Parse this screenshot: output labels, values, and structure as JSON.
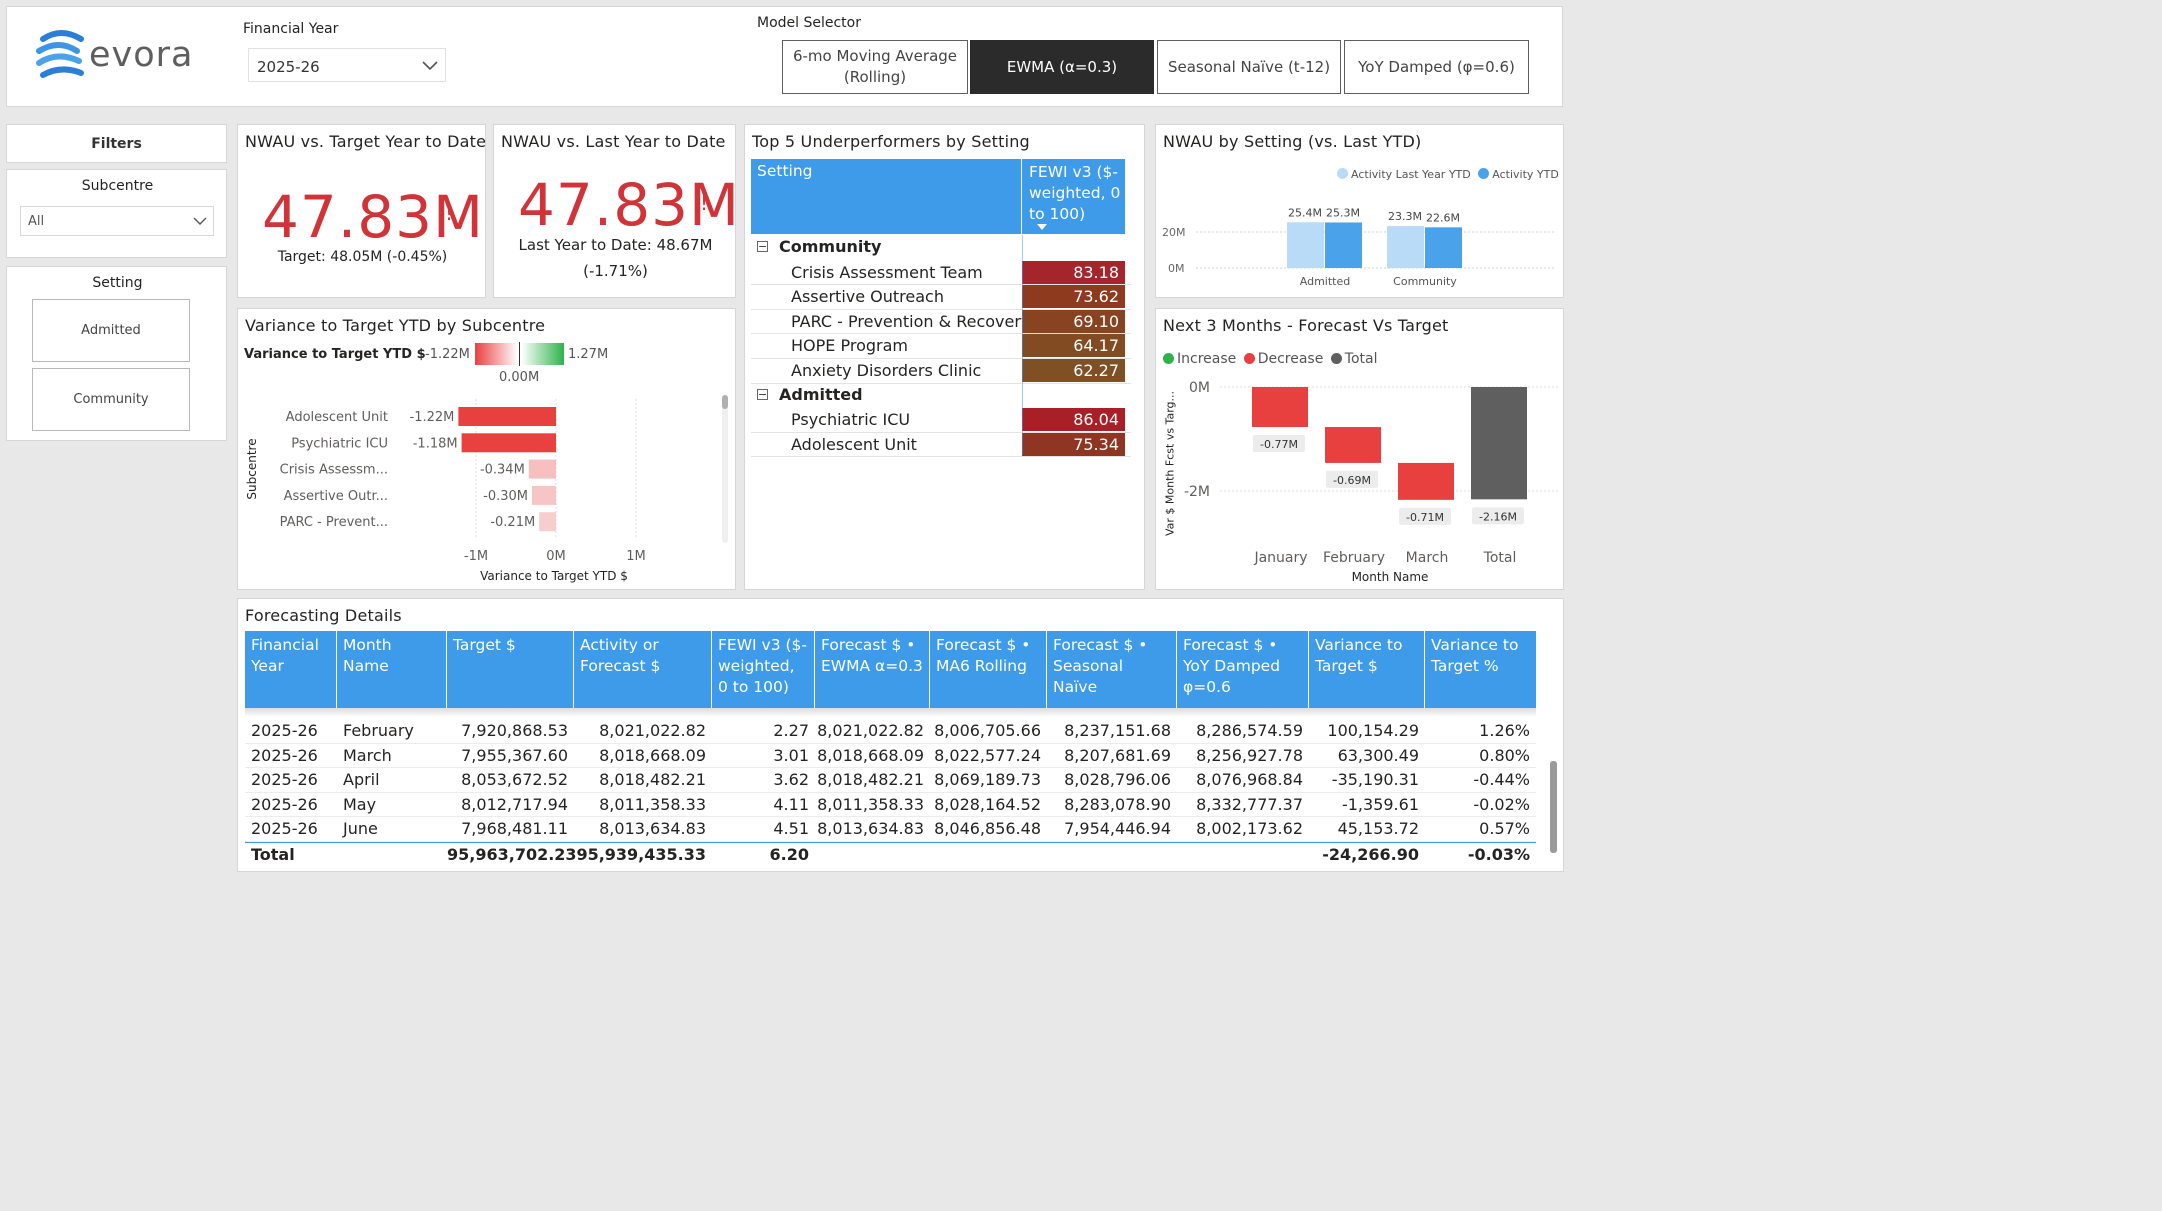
{
  "header": {
    "logo_text": "evora",
    "financial_year_label": "Financial Year",
    "financial_year_value": "2025-26",
    "model_selector_label": "Model Selector",
    "models": [
      {
        "label": "6-mo Moving Average (Rolling)",
        "active": false
      },
      {
        "label": "EWMA (α=0.3)",
        "active": true
      },
      {
        "label": "Seasonal Naïve (t-12)",
        "active": false
      },
      {
        "label": "YoY Damped (φ=0.6)",
        "active": false
      }
    ]
  },
  "filters": {
    "title": "Filters",
    "subcentre_label": "Subcentre",
    "subcentre_value": "All",
    "setting_label": "Setting",
    "setting_options": [
      "Admitted",
      "Community"
    ]
  },
  "kpi_target": {
    "title": "NWAU vs. Target Year to Date",
    "value": "47.83M",
    "alert": "!",
    "sub": "Target: 48.05M (-0.45%)"
  },
  "kpi_last_year": {
    "title": "NWAU vs. Last Year to Date",
    "value": "47.83M",
    "alert": "!",
    "sub1": "Last Year to Date: 48.67M",
    "sub2": "(-1.71%)"
  },
  "variance_chart": {
    "title": "Variance to Target YTD by Subcentre",
    "legend_label": "Variance to Target YTD $",
    "legend_min": "-1.22M",
    "legend_max": "1.27M",
    "legend_mid": "0.00M",
    "axis_title_y": "Subcentre",
    "axis_title_x": "Variance to Target YTD $",
    "ticks": [
      "-1M",
      "0M",
      "1M"
    ]
  },
  "underperformers": {
    "title": "Top 5 Underperformers by Setting",
    "col_setting": "Setting",
    "col_metric": "FEWI v3 ($-weighted, 0 to 100)",
    "groups": [
      {
        "name": "Community",
        "rows": [
          {
            "label": "Crisis Assessment Team",
            "value": "83.18",
            "color": "#a4262c"
          },
          {
            "label": "Assertive Outreach",
            "value": "73.62",
            "color": "#8e3a1e"
          },
          {
            "label": "PARC - Prevention & Recovery",
            "value": "69.10",
            "color": "#884421"
          },
          {
            "label": "HOPE Program",
            "value": "64.17",
            "color": "#834b22"
          },
          {
            "label": "Anxiety Disorders Clinic",
            "value": "62.27",
            "color": "#7f5024"
          }
        ]
      },
      {
        "name": "Admitted",
        "rows": [
          {
            "label": "Psychiatric ICU",
            "value": "86.04",
            "color": "#a81f26"
          },
          {
            "label": "Adolescent Unit",
            "value": "75.34",
            "color": "#8f3622"
          }
        ]
      }
    ]
  },
  "nwau_setting": {
    "title": "NWAU by Setting (vs. Last YTD)",
    "legend": [
      {
        "label": "Activity Last Year YTD",
        "color": "#b9dbf8"
      },
      {
        "label": "Activity YTD",
        "color": "#4aa3ea"
      }
    ],
    "y_ticks": [
      "20M",
      "0M"
    ]
  },
  "forecast_waterfall": {
    "title": "Next 3 Months - Forecast Vs Target",
    "legend": [
      {
        "label": "Increase",
        "color": "#2db34a"
      },
      {
        "label": "Decrease",
        "color": "#e8403f"
      },
      {
        "label": "Total",
        "color": "#5f5f5f"
      }
    ],
    "y_axis_title": "Var $ Month Fcst vs Targ...",
    "x_axis_title": "Month Name",
    "y_ticks": [
      "0M",
      "-2M"
    ]
  },
  "details": {
    "title": "Forecasting Details",
    "columns": [
      "Financial Year",
      "Month Name",
      "Target $",
      "Activity or Forecast $",
      "FEWI v3 ($-weighted, 0 to 100)",
      "Forecast $ • EWMA α=0.3",
      "Forecast $ • MA6 Rolling",
      "Forecast $ • Seasonal Naïve",
      "Forecast $ • YoY Damped φ=0.6",
      "Variance to Target $",
      "Variance to Target %"
    ],
    "rows": [
      [
        "2025-26",
        "February",
        "7,920,868.53",
        "8,021,022.82",
        "2.27",
        "8,021,022.82",
        "8,006,705.66",
        "8,237,151.68",
        "8,286,574.59",
        "100,154.29",
        "1.26%"
      ],
      [
        "2025-26",
        "March",
        "7,955,367.60",
        "8,018,668.09",
        "3.01",
        "8,018,668.09",
        "8,022,577.24",
        "8,207,681.69",
        "8,256,927.78",
        "63,300.49",
        "0.80%"
      ],
      [
        "2025-26",
        "April",
        "8,053,672.52",
        "8,018,482.21",
        "3.62",
        "8,018,482.21",
        "8,069,189.73",
        "8,028,796.06",
        "8,076,968.84",
        "-35,190.31",
        "-0.44%"
      ],
      [
        "2025-26",
        "May",
        "8,012,717.94",
        "8,011,358.33",
        "4.11",
        "8,011,358.33",
        "8,028,164.52",
        "8,283,078.90",
        "8,332,777.37",
        "-1,359.61",
        "-0.02%"
      ],
      [
        "2025-26",
        "June",
        "7,968,481.11",
        "8,013,634.83",
        "4.51",
        "8,013,634.83",
        "8,046,856.48",
        "7,954,446.94",
        "8,002,173.62",
        "45,153.72",
        "0.57%"
      ]
    ],
    "total": [
      "Total",
      "",
      "95,963,702.23",
      "95,939,435.33",
      "6.20",
      "",
      "",
      "",
      "",
      "-24,266.90",
      "-0.03%"
    ]
  },
  "chart_data": [
    {
      "type": "bar",
      "orientation": "horizontal",
      "title": "Variance to Target YTD by Subcentre",
      "xlabel": "Variance to Target YTD $",
      "ylabel": "Subcentre",
      "categories": [
        "Adolescent Unit",
        "Psychiatric ICU",
        "Crisis Assessm...",
        "Assertive Outr...",
        "PARC - Prevent..."
      ],
      "values": [
        -1.22,
        -1.18,
        -0.34,
        -0.3,
        -0.21
      ],
      "value_labels": [
        "-1.22M",
        "-1.18M",
        "-0.34M",
        "-0.30M",
        "-0.21M"
      ],
      "unit": "M",
      "xlim": [
        -1.25,
        1.0
      ],
      "colors": [
        "#e8403f",
        "#e9413f",
        "#f6bfc0",
        "#f7c5c6",
        "#f8cdce"
      ]
    },
    {
      "type": "bar",
      "title": "NWAU by Setting (vs. Last YTD)",
      "categories": [
        "Admitted",
        "Community"
      ],
      "series": [
        {
          "name": "Activity Last Year YTD",
          "values": [
            25.4,
            23.3
          ],
          "labels": [
            "25.4M",
            "23.3M"
          ],
          "color": "#b9dbf8"
        },
        {
          "name": "Activity YTD",
          "values": [
            25.3,
            22.6
          ],
          "labels": [
            "25.3M",
            "22.6M"
          ],
          "color": "#4aa3ea"
        }
      ],
      "unit": "M",
      "ylim": [
        0,
        30
      ]
    },
    {
      "type": "bar",
      "subtype": "waterfall",
      "title": "Next 3 Months - Forecast Vs Target",
      "xlabel": "Month Name",
      "ylabel": "Var $ Month Fcst vs Targ...",
      "categories": [
        "January",
        "February",
        "March",
        "Total"
      ],
      "values": [
        -0.77,
        -0.69,
        -0.71,
        -2.16
      ],
      "value_labels": [
        "-0.77M",
        "-0.69M",
        "-0.71M",
        "-2.16M"
      ],
      "kinds": [
        "decrease",
        "decrease",
        "decrease",
        "total"
      ],
      "unit": "M",
      "ylim": [
        -2.2,
        0
      ]
    }
  ]
}
